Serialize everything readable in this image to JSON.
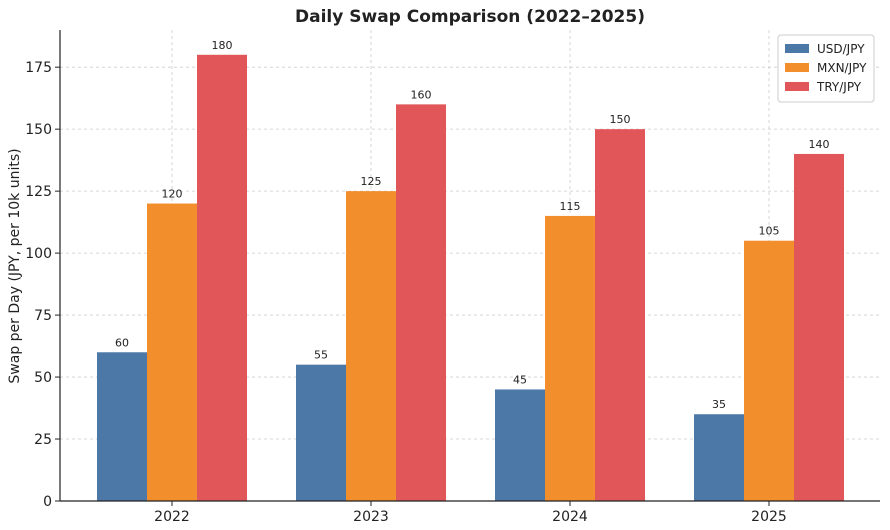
{
  "chart_data": {
    "type": "bar",
    "title": "Daily Swap Comparison (2022–2025)",
    "xlabel": "",
    "ylabel": "Swap per Day (JPY, per 10k units)",
    "categories": [
      "2022",
      "2023",
      "2024",
      "2025"
    ],
    "series": [
      {
        "name": "USD/JPY",
        "color": "#4c78a8",
        "values": [
          60,
          55,
          45,
          35
        ]
      },
      {
        "name": "MXN/JPY",
        "color": "#f28e2b",
        "values": [
          120,
          125,
          115,
          105
        ]
      },
      {
        "name": "TRY/JPY",
        "color": "#e15759",
        "values": [
          180,
          160,
          150,
          140
        ]
      }
    ],
    "yticks": [
      "0",
      "25",
      "50",
      "75",
      "100",
      "125",
      "150",
      "175"
    ],
    "ylim": [
      0,
      190
    ],
    "grid": true,
    "legend": "top-right"
  }
}
